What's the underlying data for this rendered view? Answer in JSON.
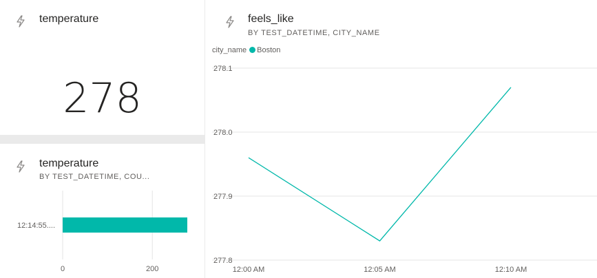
{
  "card_tile": {
    "title": "temperature",
    "value": "278",
    "icon": "lightning-bolt-icon"
  },
  "bar_tile": {
    "title": "temperature",
    "subtitle": "BY TEST_DATETIME, COU...",
    "icon": "lightning-bolt-icon",
    "chart_data": {
      "type": "bar",
      "orientation": "horizontal",
      "categories": [
        "12:14:55...."
      ],
      "values": [
        278
      ],
      "xlim": [
        0,
        278
      ],
      "x_ticks": [
        "0",
        "200"
      ],
      "color": "#01b8aa",
      "grid": true
    }
  },
  "line_tile": {
    "title": "feels_like",
    "subtitle": "BY TEST_DATETIME, CITY_NAME",
    "icon": "lightning-bolt-icon",
    "legend_title": "city_name",
    "chart_data": {
      "type": "line",
      "x": [
        "12:00 AM",
        "12:05 AM",
        "12:10 AM"
      ],
      "series": [
        {
          "name": "Boston",
          "color": "#01b8aa",
          "values": [
            277.96,
            277.83,
            278.07
          ]
        }
      ],
      "ylim": [
        277.8,
        278.1
      ],
      "y_ticks": [
        "278.1",
        "278.0",
        "277.9",
        "277.8"
      ],
      "x_ticks": [
        "12:00 AM",
        "12:05 AM",
        "12:10 AM"
      ],
      "grid": true,
      "legend_position": "top-left"
    }
  }
}
